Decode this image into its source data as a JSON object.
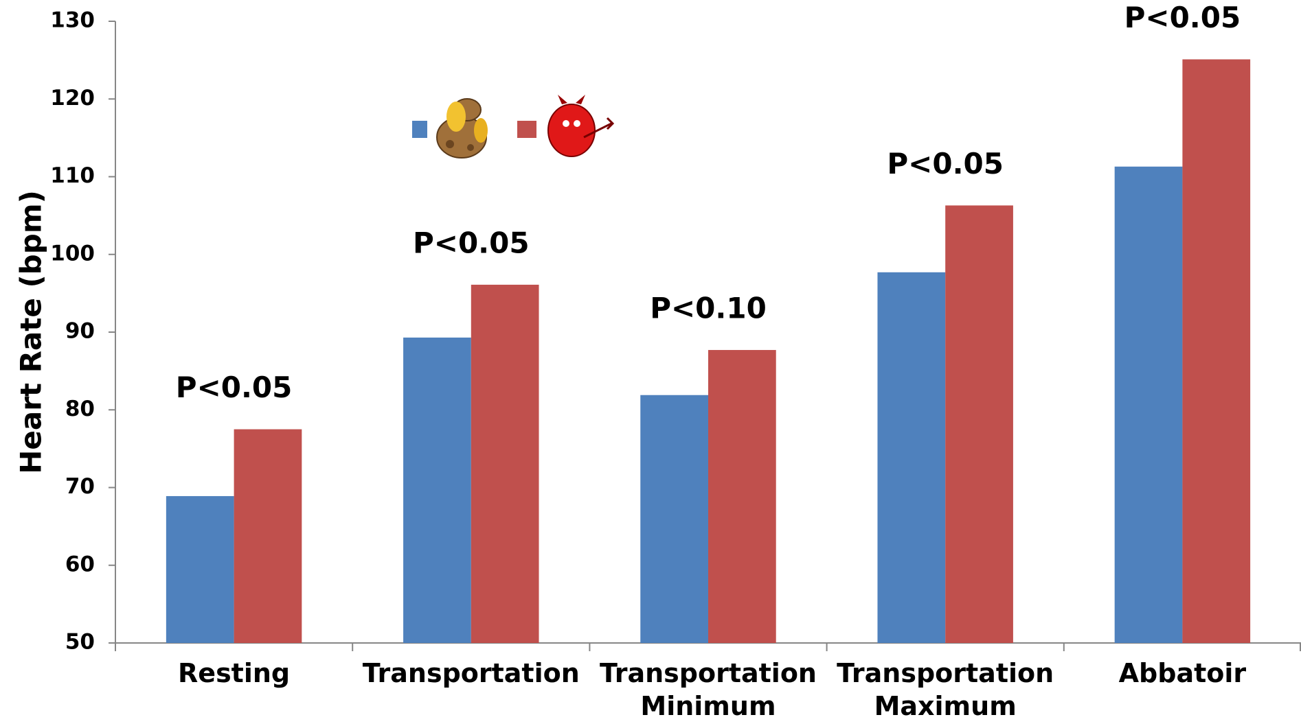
{
  "chart_data": {
    "type": "bar",
    "y_label": "Heart Rate (bpm)",
    "categories": [
      "Resting",
      "Transportation",
      "Transportation Minimum",
      "Transportation Maximum",
      "Abbatoir"
    ],
    "series": [
      {
        "color": "#4f81bd",
        "values": [
          68.9,
          89.3,
          81.9,
          97.7,
          111.3
        ]
      },
      {
        "color": "#c0504d",
        "values": [
          77.5,
          96.1,
          87.7,
          106.3,
          125.1
        ]
      }
    ],
    "annotations": [
      "P<0.05",
      "P<0.05",
      "P<0.10",
      "P<0.05",
      "P<0.05"
    ],
    "ylim": [
      50,
      130
    ],
    "yticks": [
      50,
      60,
      70,
      80,
      90,
      100,
      110,
      120,
      130
    ],
    "grid": false
  }
}
